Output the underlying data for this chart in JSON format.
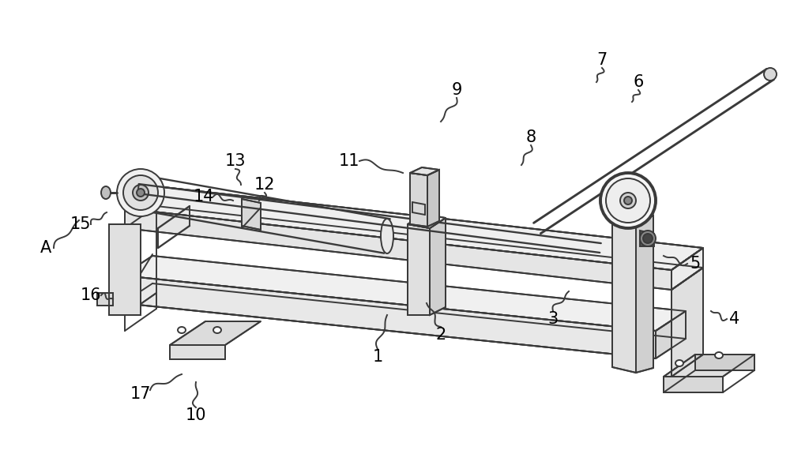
{
  "bg_color": "#ffffff",
  "line_color": "#3a3a3a",
  "line_width": 1.4,
  "label_fontsize": 15,
  "wavy_amp": 5,
  "wavy_freq": 2.5
}
